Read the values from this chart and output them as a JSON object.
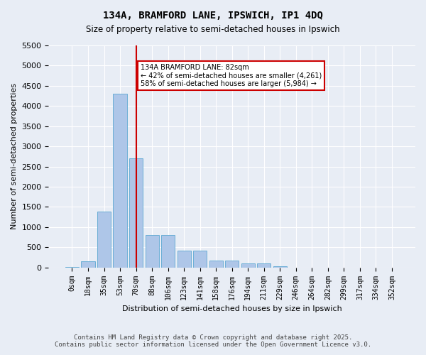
{
  "title_line1": "134A, BRAMFORD LANE, IPSWICH, IP1 4DQ",
  "title_line2": "Size of property relative to semi-detached houses in Ipswich",
  "xlabel": "Distribution of semi-detached houses by size in Ipswich",
  "ylabel": "Number of semi-detached properties",
  "bin_labels": [
    "0sqm",
    "18sqm",
    "35sqm",
    "53sqm",
    "70sqm",
    "88sqm",
    "106sqm",
    "123sqm",
    "141sqm",
    "158sqm",
    "176sqm",
    "194sqm",
    "211sqm",
    "229sqm",
    "246sqm",
    "264sqm",
    "282sqm",
    "299sqm",
    "317sqm",
    "334sqm",
    "352sqm"
  ],
  "bar_values": [
    10,
    150,
    1380,
    4300,
    2700,
    800,
    800,
    420,
    420,
    170,
    170,
    100,
    100,
    30,
    0,
    0,
    0,
    0,
    0,
    0,
    0
  ],
  "bar_color": "#aec6e8",
  "bar_edge_color": "#6baed6",
  "ylim": [
    0,
    5500
  ],
  "yticks": [
    0,
    500,
    1000,
    1500,
    2000,
    2500,
    3000,
    3500,
    4000,
    4500,
    5000,
    5500
  ],
  "property_size": 82,
  "property_bin_index": 4,
  "vline_color": "#cc0000",
  "annotation_text": "134A BRAMFORD LANE: 82sqm\n← 42% of semi-detached houses are smaller (4,261)\n58% of semi-detached houses are larger (5,984) →",
  "annotation_box_color": "#cc0000",
  "footer_line1": "Contains HM Land Registry data © Crown copyright and database right 2025.",
  "footer_line2": "Contains public sector information licensed under the Open Government Licence v3.0.",
  "background_color": "#e8edf5",
  "plot_background": "#e8edf5",
  "grid_color": "#ffffff"
}
